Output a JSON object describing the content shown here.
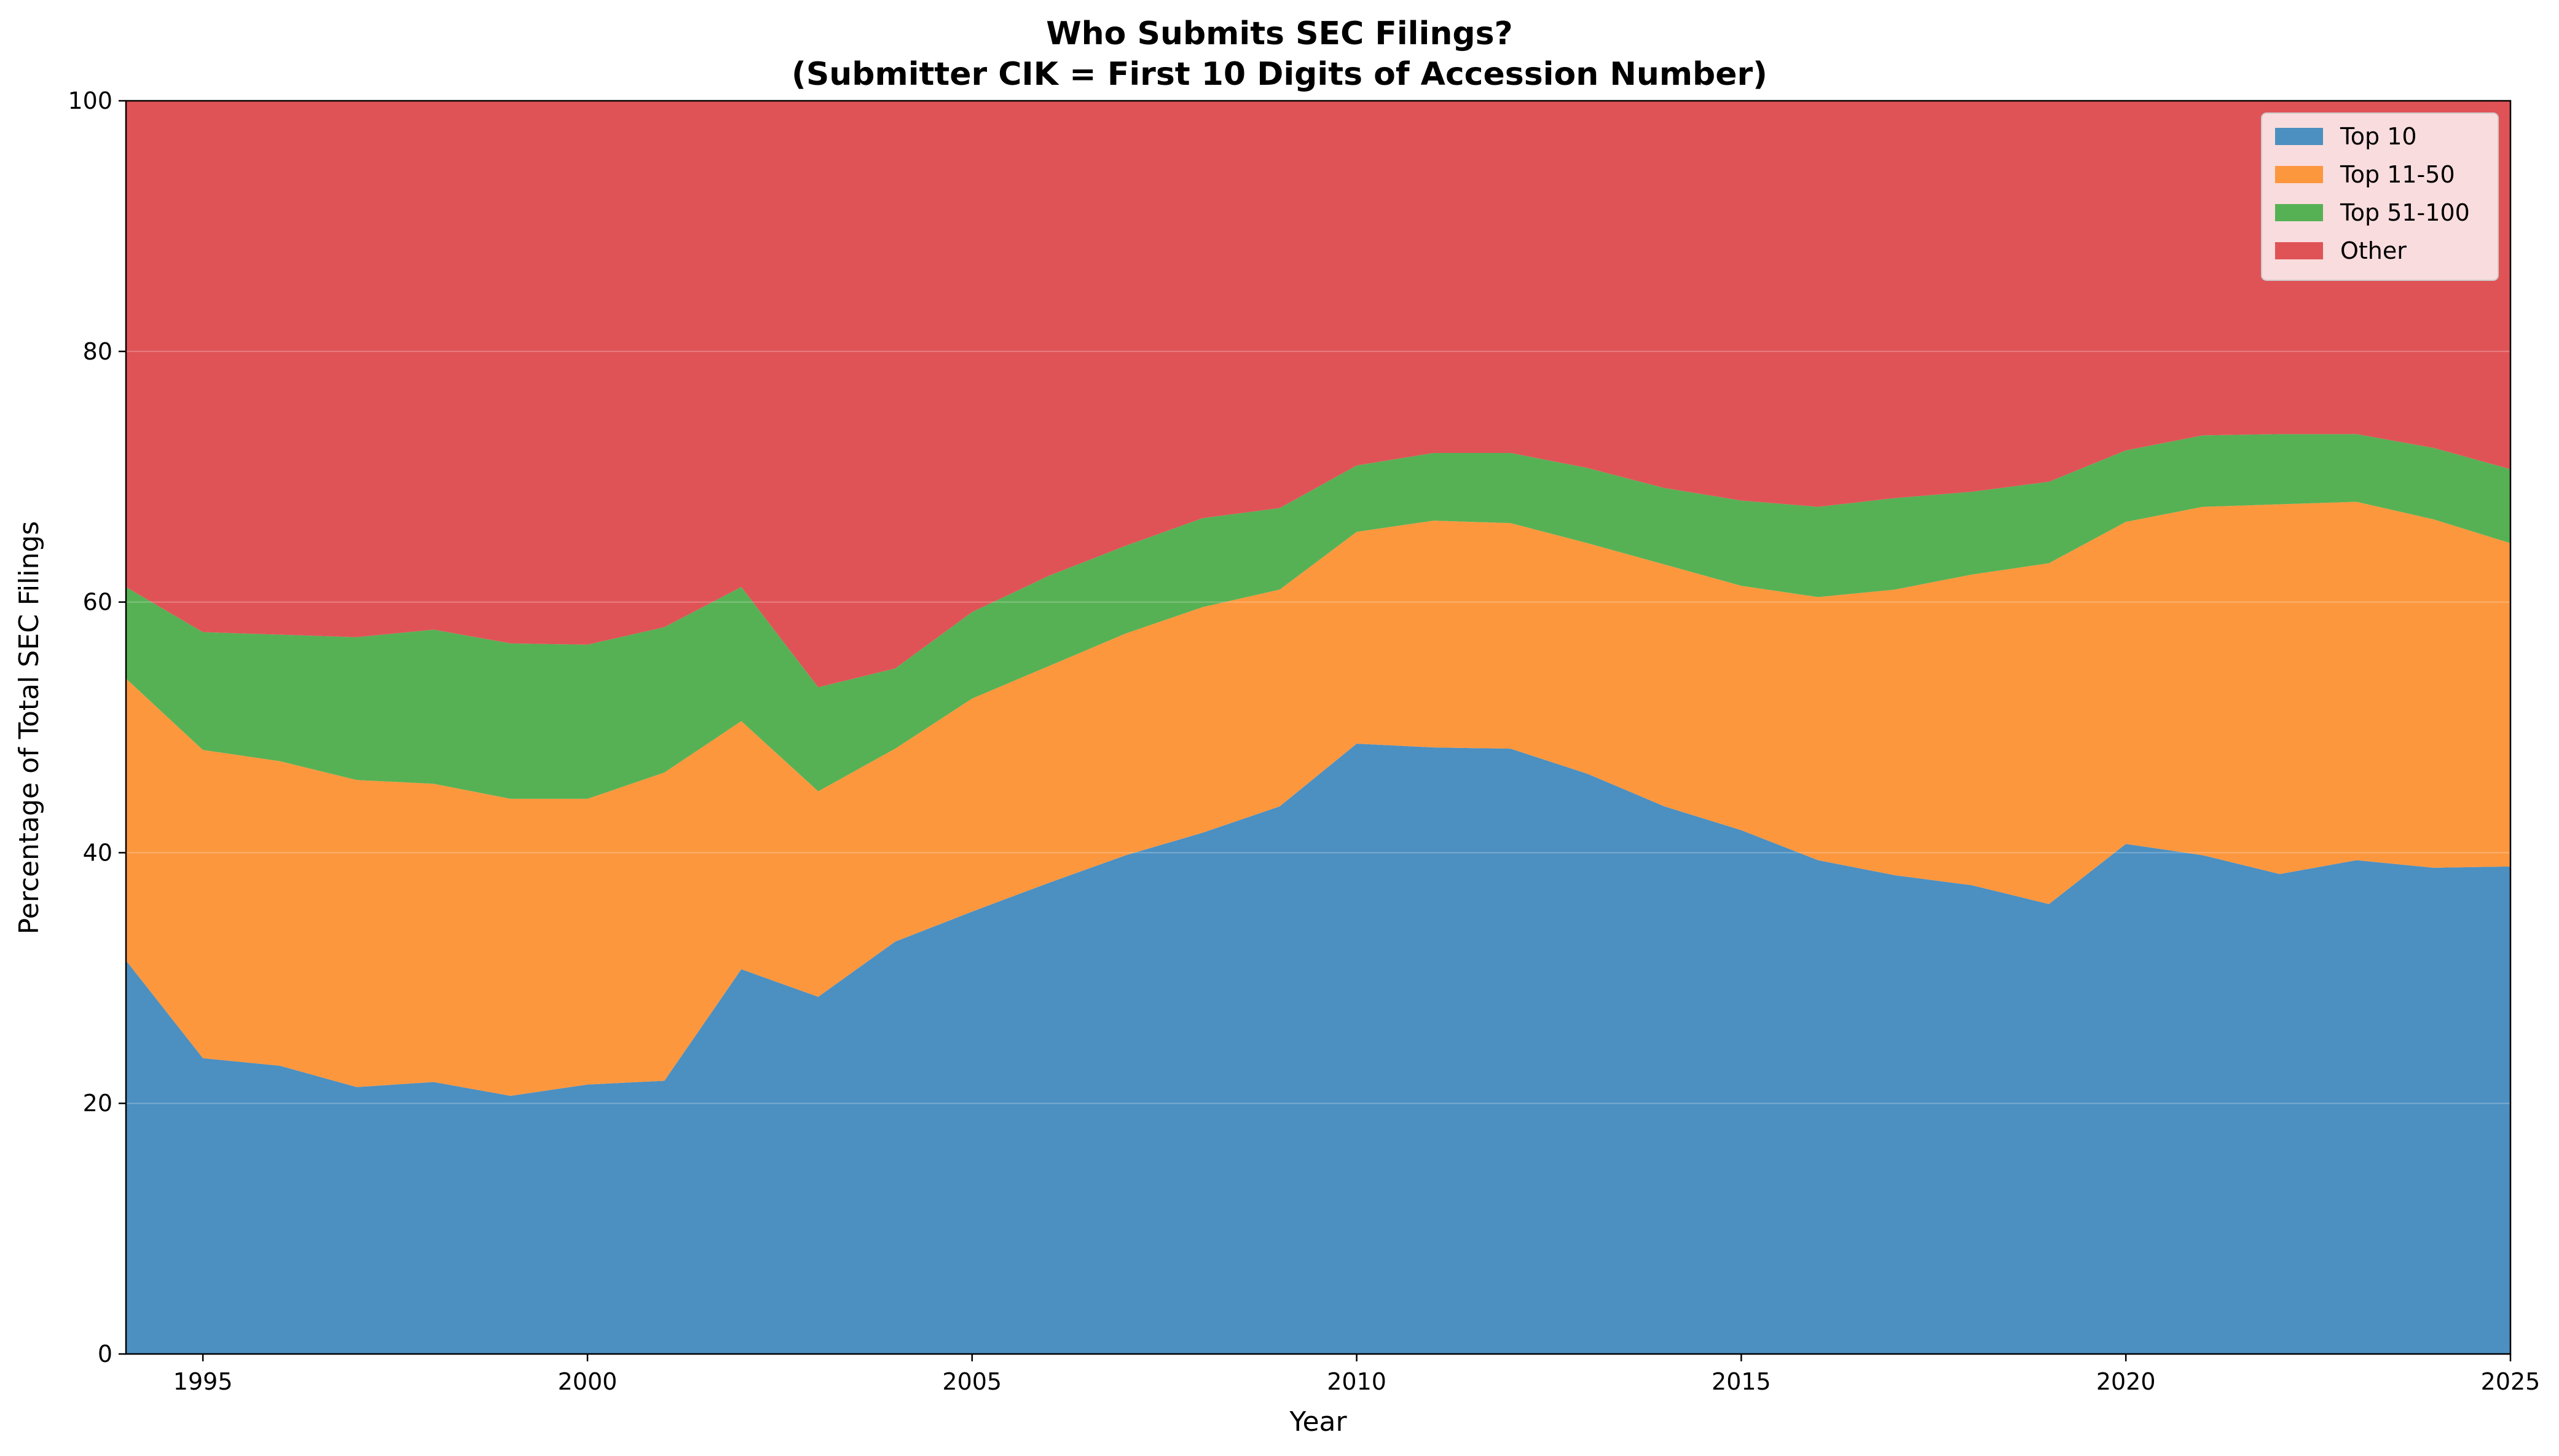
{
  "chart_data": {
    "type": "area",
    "stacked": true,
    "title_line1": "Who Submits SEC Filings?",
    "title_line2": "(Submitter CIK = First 10 Digits of Accession Number)",
    "xlabel": "Year",
    "ylabel": "Percentage of Total SEC Filings",
    "xlim": [
      1994,
      2025
    ],
    "ylim": [
      0,
      100
    ],
    "xticks": [
      1995,
      2000,
      2005,
      2010,
      2015,
      2020,
      2025
    ],
    "xtick_labels": [
      "1995",
      "2000",
      "2005",
      "2010",
      "2015",
      "2020",
      "2025"
    ],
    "yticks": [
      0,
      20,
      40,
      60,
      80,
      100
    ],
    "ytick_labels": [
      "0",
      "20",
      "40",
      "60",
      "80",
      "100"
    ],
    "grid": "horizontal",
    "legend_position": "top-right",
    "x": [
      1994,
      1995,
      1996,
      1997,
      1998,
      1999,
      2000,
      2001,
      2002,
      2003,
      2004,
      2005,
      2006,
      2007,
      2008,
      2009,
      2010,
      2011,
      2012,
      2013,
      2014,
      2015,
      2016,
      2017,
      2018,
      2019,
      2020,
      2021,
      2022,
      2023,
      2024,
      2025
    ],
    "series": [
      {
        "name": "Top 10",
        "color": "#4c8fc1",
        "values": [
          31.4,
          23.6,
          23.0,
          21.3,
          21.7,
          20.6,
          21.5,
          21.8,
          30.7,
          28.5,
          32.9,
          35.3,
          37.6,
          39.8,
          41.6,
          43.7,
          48.7,
          48.4,
          48.3,
          46.3,
          43.7,
          41.8,
          39.4,
          38.2,
          37.4,
          35.9,
          40.7,
          39.8,
          38.3,
          39.4,
          38.8,
          38.9
        ]
      },
      {
        "name": "Top 11-50",
        "color": "#fc973e",
        "values": [
          22.5,
          24.6,
          24.3,
          24.5,
          23.8,
          23.7,
          22.8,
          24.6,
          19.8,
          16.4,
          15.4,
          17.0,
          17.3,
          17.7,
          18.0,
          17.3,
          16.9,
          18.1,
          18.0,
          18.4,
          19.3,
          19.5,
          21.0,
          22.8,
          24.8,
          27.2,
          25.7,
          27.8,
          29.5,
          28.6,
          27.8,
          25.8
        ]
      },
      {
        "name": "Top 51-100",
        "color": "#56b154",
        "values": [
          7.3,
          9.4,
          10.1,
          11.4,
          12.3,
          12.4,
          12.3,
          11.6,
          10.7,
          8.3,
          6.4,
          6.9,
          7.2,
          7.0,
          7.1,
          6.5,
          5.3,
          5.4,
          5.6,
          6.0,
          6.1,
          6.8,
          7.2,
          7.3,
          6.6,
          6.5,
          5.7,
          5.7,
          5.6,
          5.4,
          5.7,
          5.9
        ]
      },
      {
        "name": "Other",
        "color": "#df5357",
        "values": [
          38.8,
          42.4,
          42.6,
          42.8,
          42.2,
          43.3,
          43.4,
          42.0,
          38.8,
          46.8,
          45.3,
          40.8,
          37.9,
          35.5,
          33.3,
          32.5,
          29.1,
          28.1,
          28.1,
          29.3,
          30.9,
          31.9,
          32.4,
          31.7,
          31.2,
          30.4,
          27.9,
          26.7,
          26.6,
          26.6,
          27.7,
          29.4
        ]
      }
    ]
  }
}
